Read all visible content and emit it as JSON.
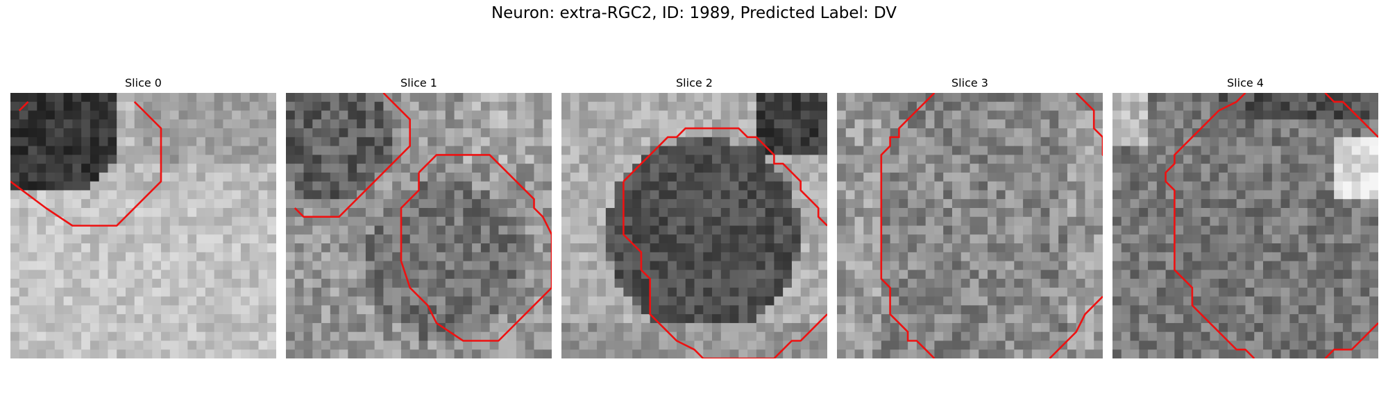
{
  "figure": {
    "title": "Neuron: extra-RGC2, ID: 1989, Predicted Label: DV"
  },
  "slices": [
    {
      "title": "Slice 0"
    },
    {
      "title": "Slice 1"
    },
    {
      "title": "Slice 2"
    },
    {
      "title": "Slice 3"
    },
    {
      "title": "Slice 4"
    }
  ],
  "colors": {
    "contour": "#ee1111",
    "background": "#ffffff"
  }
}
